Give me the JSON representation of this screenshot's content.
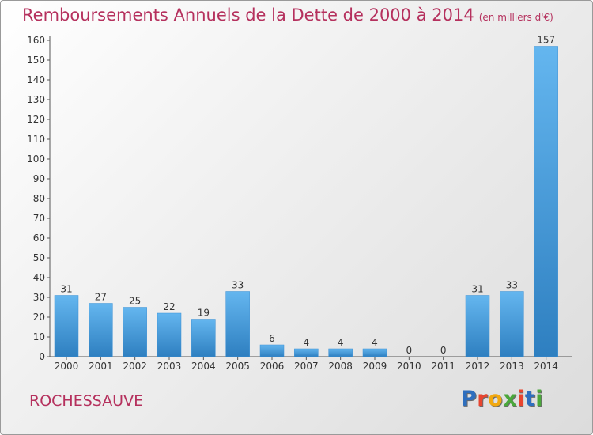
{
  "title": "Remboursements Annuels de la Dette de 2000 à 2014",
  "unit": "(en milliers d'€)",
  "commune": "ROCHESSAUVE",
  "logo": {
    "text": "Proxiti",
    "colors": [
      "#2e6fbf",
      "#e8452f",
      "#f2a80f",
      "#4aa83b",
      "#e8452f",
      "#2e6fbf",
      "#4aa83b"
    ]
  },
  "colors": {
    "bar_light": "#64b6ef",
    "bar_dark": "#2e7fc0",
    "title": "#b5305d"
  },
  "chart_data": {
    "type": "bar",
    "categories": [
      "2000",
      "2001",
      "2002",
      "2003",
      "2004",
      "2005",
      "2006",
      "2007",
      "2008",
      "2009",
      "2010",
      "2011",
      "2012",
      "2013",
      "2014"
    ],
    "values": [
      31,
      27,
      25,
      22,
      19,
      33,
      6,
      4,
      4,
      4,
      0,
      0,
      31,
      33,
      157
    ],
    "ylim": [
      0,
      160
    ],
    "yticks": [
      0,
      10,
      20,
      30,
      40,
      50,
      60,
      70,
      80,
      90,
      100,
      110,
      120,
      130,
      140,
      150,
      160
    ],
    "grid": false,
    "data_labels": true
  }
}
